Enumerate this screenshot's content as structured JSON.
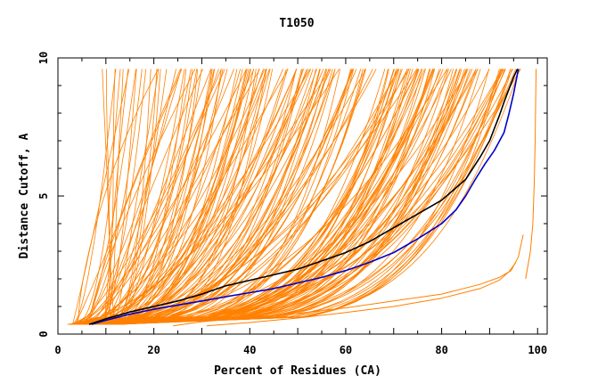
{
  "chart_data": {
    "type": "line",
    "title": "T1050",
    "xlabel": "Percent of Residues (CA)",
    "ylabel": "Distance Cutoff, A",
    "xlim": [
      0,
      102
    ],
    "ylim": [
      0,
      10
    ],
    "xticks": [
      "0",
      "20",
      "40",
      "60",
      "80",
      "100"
    ],
    "yticks": [
      "0",
      "5",
      "10"
    ],
    "xtick_values": [
      0,
      20,
      40,
      60,
      80,
      100
    ],
    "ytick_values": [
      0,
      5,
      10
    ],
    "grid": false,
    "colors": {
      "models": "#ff8000",
      "highlight_1": "#000000",
      "highlight_2": "#0000cc"
    },
    "series": [
      {
        "color": "#000000",
        "x": [
          6.5,
          10,
          15,
          20,
          25,
          30,
          35,
          40,
          45,
          50,
          55,
          60,
          65,
          70,
          75,
          80,
          85,
          88,
          90,
          92,
          93,
          94,
          95,
          95.8
        ],
        "y": [
          0.35,
          0.55,
          0.8,
          1.0,
          1.2,
          1.45,
          1.75,
          1.95,
          2.15,
          2.35,
          2.65,
          2.95,
          3.35,
          3.85,
          4.35,
          4.85,
          5.6,
          6.4,
          7.0,
          7.9,
          8.4,
          8.85,
          9.3,
          9.6
        ]
      },
      {
        "color": "#0000cc",
        "x": [
          7,
          10,
          15,
          20,
          25,
          30,
          35,
          40,
          45,
          50,
          55,
          60,
          65,
          70,
          75,
          80,
          83,
          85,
          87,
          89,
          91,
          93,
          94,
          95,
          96
        ],
        "y": [
          0.35,
          0.5,
          0.72,
          0.9,
          1.05,
          1.2,
          1.35,
          1.5,
          1.65,
          1.85,
          2.05,
          2.3,
          2.6,
          2.95,
          3.45,
          4.0,
          4.5,
          5.0,
          5.6,
          6.15,
          6.65,
          7.3,
          7.95,
          8.7,
          9.6
        ]
      },
      {
        "color": "#ff8000",
        "x": [
          24,
          30,
          40,
          50,
          60,
          70,
          80,
          88,
          92,
          94.5,
          96,
          97
        ],
        "y": [
          0.3,
          0.45,
          0.6,
          0.75,
          0.95,
          1.2,
          1.45,
          1.8,
          2.05,
          2.3,
          2.8,
          3.6
        ]
      },
      {
        "color": "#ff8000",
        "x": [
          31,
          40,
          50,
          60,
          70,
          80,
          88,
          92,
          94,
          95.5
        ],
        "y": [
          0.3,
          0.42,
          0.58,
          0.78,
          1.0,
          1.3,
          1.65,
          1.95,
          2.25,
          2.6
        ]
      },
      {
        "color": "#ff8000",
        "x": [
          97.5,
          98.5,
          99,
          99.3,
          99.5,
          99.6,
          99.7
        ],
        "y": [
          2.0,
          3.0,
          4.0,
          5.5,
          7.0,
          8.5,
          9.6
        ]
      }
    ]
  }
}
